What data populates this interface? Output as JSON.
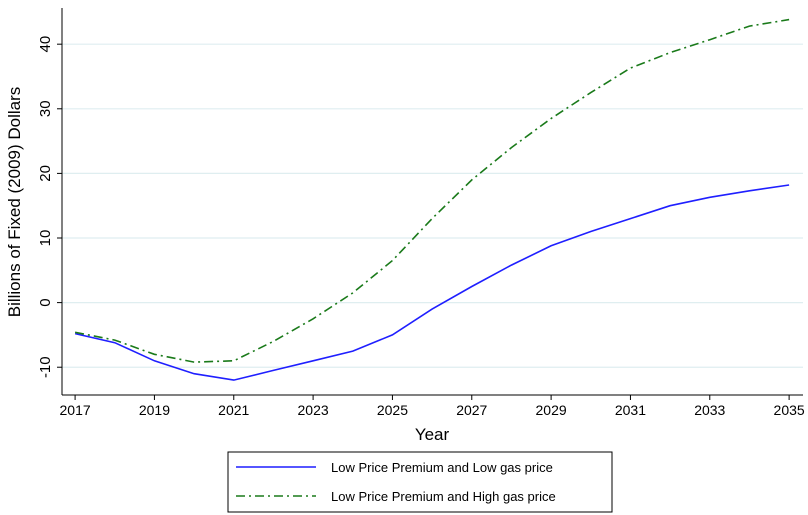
{
  "chart_data": {
    "type": "line",
    "ylabel": "Billions of Fixed (2009) Dollars",
    "xlabel": "Year",
    "x": [
      2017,
      2018,
      2019,
      2020,
      2021,
      2022,
      2023,
      2024,
      2025,
      2026,
      2027,
      2028,
      2029,
      2030,
      2031,
      2032,
      2033,
      2034,
      2035
    ],
    "series": [
      {
        "name": "Low Price Premium and Low gas price",
        "color": "#1f1fff",
        "style": "solid",
        "values": [
          -4.8,
          -6.2,
          -9,
          -11,
          -12,
          -10.5,
          -9,
          -7.5,
          -5,
          -1,
          2.5,
          5.8,
          8.8,
          11,
          13,
          15,
          16.3,
          17.3,
          18.2
        ]
      },
      {
        "name": "Low Price Premium and High gas price",
        "color": "#1a7a1a",
        "style": "dashdot",
        "values": [
          -4.6,
          -5.8,
          -8,
          -9.2,
          -9,
          -6,
          -2.5,
          1.5,
          6.5,
          13,
          19,
          24,
          28.5,
          32.5,
          36.3,
          38.7,
          40.7,
          42.8,
          43.8
        ]
      }
    ],
    "xlim": [
      2016.67,
      2035.35
    ],
    "xticks": [
      2017,
      2019,
      2021,
      2023,
      2025,
      2027,
      2029,
      2031,
      2033,
      2035
    ],
    "ylim": [
      -14.3,
      45.6
    ],
    "yticks": [
      -10,
      0,
      10,
      20,
      30,
      40
    ],
    "grid": true,
    "legend": "bottom"
  }
}
